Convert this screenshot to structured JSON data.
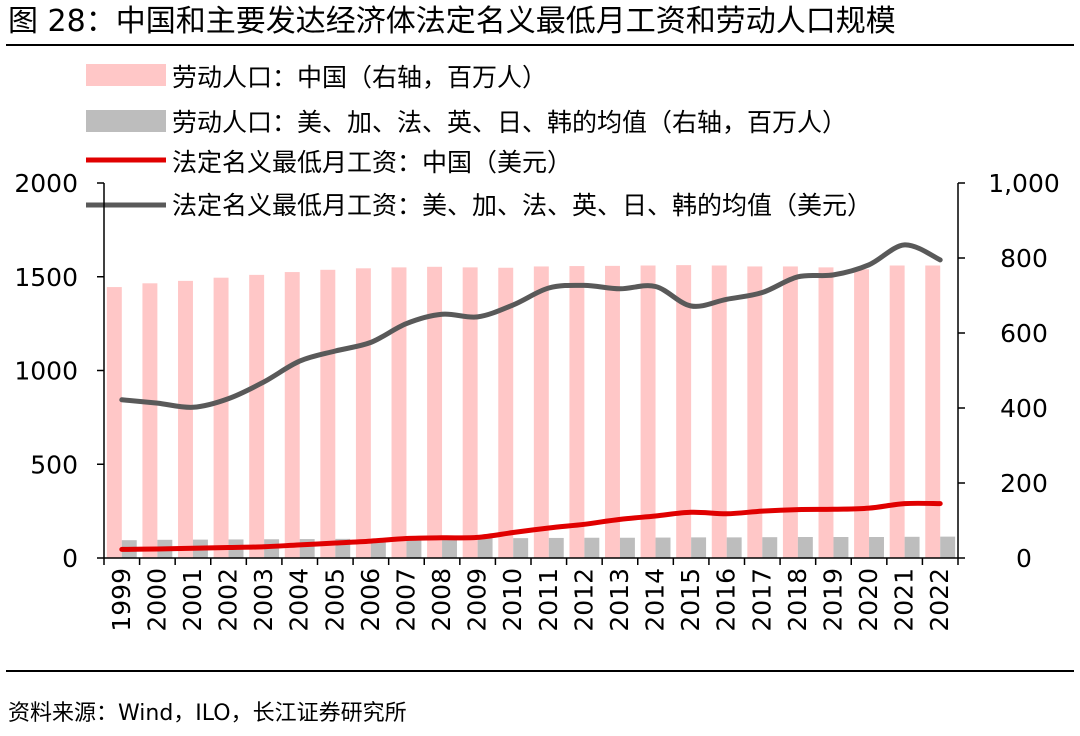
{
  "figure": {
    "title": "图 28：中国和主要发达经济体法定名义最低月工资和劳动人口规模",
    "source": "资料来源：Wind，ILO，长江证券研究所"
  },
  "colors": {
    "china_labor_bar": "#ffc7c7",
    "avg_labor_bar": "#bdbdbd",
    "china_wage_line": "#e00000",
    "avg_wage_line": "#595959"
  },
  "chart_data": {
    "type": "bar+line",
    "categories": [
      "1999",
      "2000",
      "2001",
      "2002",
      "2003",
      "2004",
      "2005",
      "2006",
      "2007",
      "2008",
      "2009",
      "2010",
      "2011",
      "2012",
      "2013",
      "2014",
      "2015",
      "2016",
      "2017",
      "2018",
      "2019",
      "2020",
      "2021",
      "2022"
    ],
    "left_axis": {
      "ylim": [
        0,
        2000
      ],
      "ticks": [
        0,
        500,
        1000,
        1500,
        2000
      ],
      "tick_labels": [
        "0",
        "500",
        "1000",
        "1500",
        "2000"
      ]
    },
    "right_axis": {
      "ylim": [
        0,
        1000
      ],
      "ticks": [
        0,
        200,
        400,
        600,
        800,
        1000
      ],
      "tick_labels": [
        "0",
        "200",
        "400",
        "600",
        "800",
        "1,000"
      ]
    },
    "legend_position": "top",
    "series": [
      {
        "name": "劳动人口：中国（右轴，百万人）",
        "type": "bar",
        "axis": "left",
        "color": "#ffc7c7",
        "values": [
          1445,
          1465,
          1478,
          1495,
          1510,
          1525,
          1537,
          1545,
          1550,
          1553,
          1550,
          1548,
          1555,
          1557,
          1558,
          1560,
          1562,
          1560,
          1555,
          1555,
          1550,
          1540,
          1560,
          1560
        ]
      },
      {
        "name": "劳动人口：美、加、法、英、日、韩的均值（右轴，百万人）",
        "type": "bar",
        "axis": "left",
        "color": "#bdbdbd",
        "values": [
          95,
          97,
          98,
          99,
          100,
          101,
          102,
          103,
          104,
          105,
          106,
          106,
          107,
          108,
          108,
          109,
          110,
          110,
          111,
          112,
          112,
          112,
          113,
          114
        ]
      },
      {
        "name": "法定名义最低月工资：中国（美元）",
        "type": "line",
        "axis": "right",
        "color": "#e00000",
        "values": [
          23,
          24,
          26,
          28,
          30,
          35,
          40,
          45,
          52,
          54,
          55,
          68,
          80,
          90,
          103,
          112,
          122,
          118,
          125,
          129,
          130,
          133,
          145,
          145
        ]
      },
      {
        "name": "法定名义最低月工资：美、加、法、英、日、韩的均值（美元）",
        "type": "line",
        "axis": "right",
        "color": "#595959",
        "values": [
          422,
          413,
          402,
          425,
          470,
          525,
          552,
          575,
          625,
          650,
          643,
          675,
          720,
          727,
          718,
          724,
          672,
          690,
          708,
          750,
          755,
          782,
          835,
          795
        ]
      }
    ]
  }
}
